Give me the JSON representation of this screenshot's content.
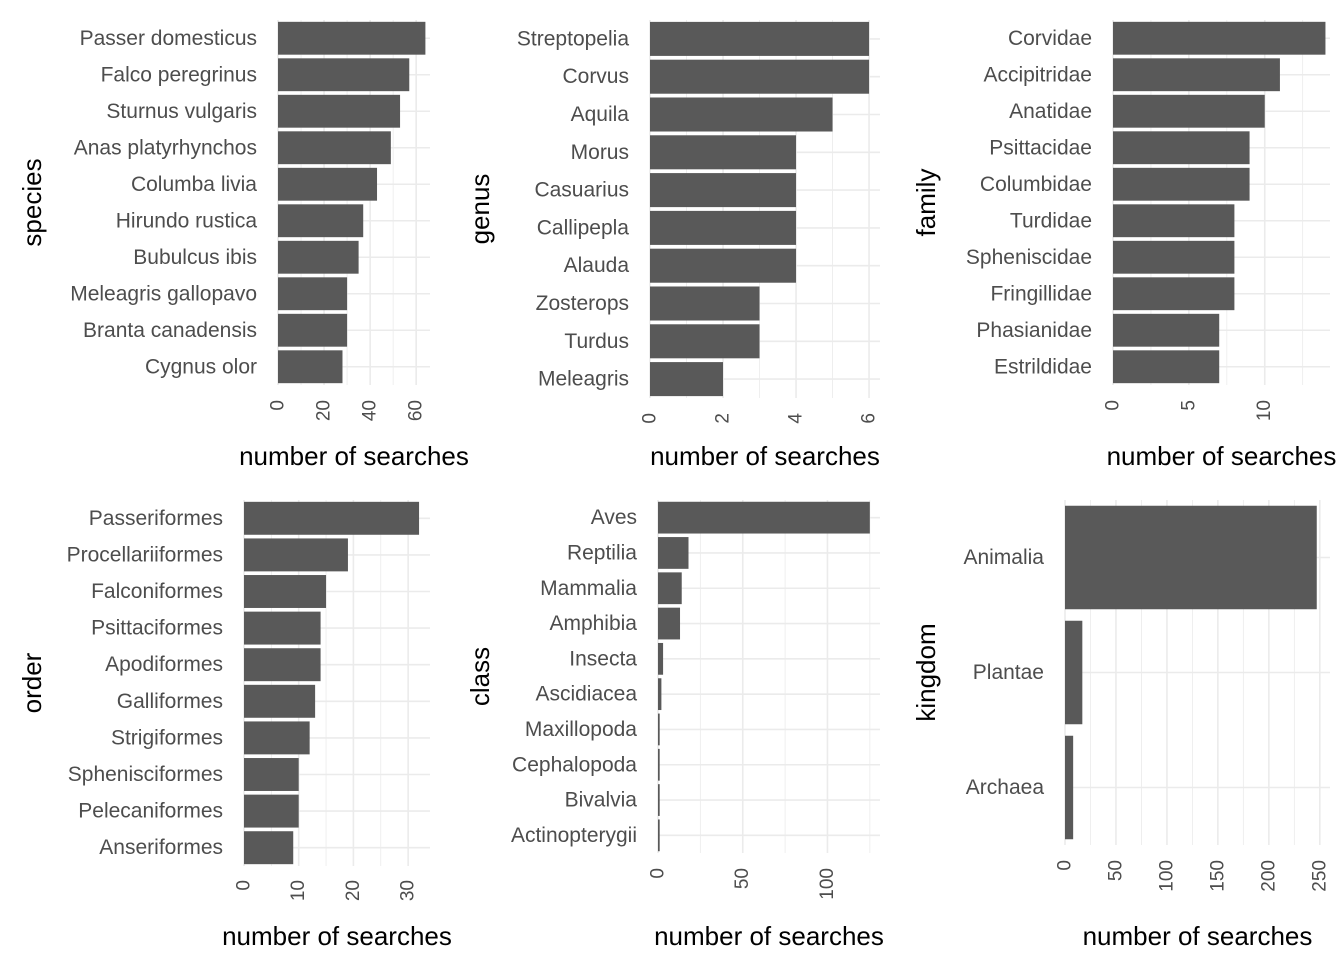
{
  "chart_data": [
    {
      "type": "bar",
      "orientation": "horizontal",
      "ylabel": "species",
      "xlabel": "number of searches",
      "categories": [
        "Passer domesticus",
        "Falco peregrinus",
        "Sturnus vulgaris",
        "Anas platyrhynchos",
        "Columba livia",
        "Hirundo rustica",
        "Bubulcus ibis",
        "Meleagris gallopavo",
        "Branta canadensis",
        "Cygnus olor"
      ],
      "values": [
        64,
        57,
        53,
        49,
        43,
        37,
        35,
        30,
        30,
        28
      ],
      "xticks": [
        0,
        20,
        40,
        60
      ],
      "grid": true
    },
    {
      "type": "bar",
      "orientation": "horizontal",
      "ylabel": "genus",
      "xlabel": "number of searches",
      "categories": [
        "Streptopelia",
        "Corvus",
        "Aquila",
        "Morus",
        "Casuarius",
        "Callipepla",
        "Alauda",
        "Zosterops",
        "Turdus",
        "Meleagris"
      ],
      "values": [
        6,
        6,
        5,
        4,
        4,
        4,
        4,
        3,
        3,
        2
      ],
      "xticks": [
        0,
        2,
        4,
        6
      ],
      "grid": true
    },
    {
      "type": "bar",
      "orientation": "horizontal",
      "ylabel": "family",
      "xlabel": "number of searches",
      "categories": [
        "Corvidae",
        "Accipitridae",
        "Anatidae",
        "Psittacidae",
        "Columbidae",
        "Turdidae",
        "Spheniscidae",
        "Fringillidae",
        "Phasianidae",
        "Estrildidae"
      ],
      "values": [
        14,
        11,
        10,
        9,
        9,
        8,
        8,
        8,
        7,
        7
      ],
      "xticks": [
        0,
        5,
        10
      ],
      "grid": true
    },
    {
      "type": "bar",
      "orientation": "horizontal",
      "ylabel": "order",
      "xlabel": "number of searches",
      "categories": [
        "Passeriformes",
        "Procellariiformes",
        "Falconiformes",
        "Psittaciformes",
        "Apodiformes",
        "Galliformes",
        "Strigiformes",
        "Sphenisciformes",
        "Pelecaniformes",
        "Anseriformes"
      ],
      "values": [
        32,
        19,
        15,
        14,
        14,
        13,
        12,
        10,
        10,
        9
      ],
      "xticks": [
        0,
        10,
        20,
        30
      ],
      "grid": true
    },
    {
      "type": "bar",
      "orientation": "horizontal",
      "ylabel": "class",
      "xlabel": "number of searches",
      "categories": [
        "Aves",
        "Reptilia",
        "Mammalia",
        "Amphibia",
        "Insecta",
        "Ascidiacea",
        "Maxillopoda",
        "Cephalopoda",
        "Bivalvia",
        "Actinopterygii"
      ],
      "values": [
        125,
        18,
        14,
        13,
        3,
        2,
        1,
        1,
        1,
        1
      ],
      "xticks": [
        0,
        50,
        100
      ],
      "grid": true
    },
    {
      "type": "bar",
      "orientation": "horizontal",
      "ylabel": "kingdom",
      "xlabel": "number of searches",
      "categories": [
        "Animalia",
        "Plantae",
        "Archaea"
      ],
      "values": [
        247,
        17,
        8
      ],
      "xticks": [
        0,
        50,
        100,
        150,
        200,
        250
      ],
      "grid": true
    }
  ],
  "colors": {
    "bar": "#595959",
    "grid": "#ebebeb",
    "text": "#4d4d4d",
    "title": "#000000"
  }
}
